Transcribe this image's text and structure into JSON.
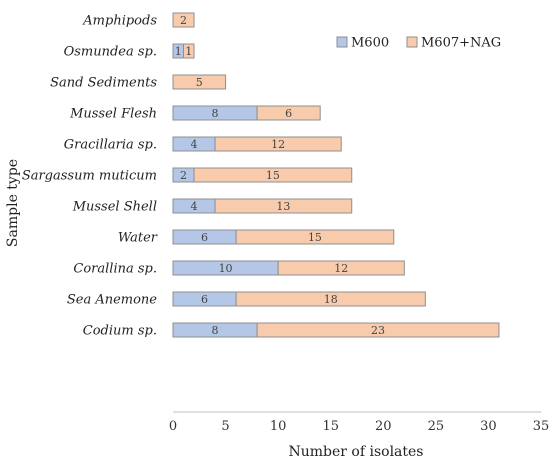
{
  "chart_data": {
    "type": "bar",
    "orientation": "horizontal",
    "stacked": true,
    "categories": [
      "Amphipods",
      "Osmundea sp.",
      "Sand Sediments",
      "Mussel Flesh",
      "Gracillaria sp.",
      "Sargassum muticum",
      "Mussel Shell",
      "Water",
      "Corallina sp.",
      "Sea Anemone",
      "Codium sp."
    ],
    "series": [
      {
        "name": "M600",
        "color": "#b4c7e7",
        "values": [
          0,
          1,
          0,
          8,
          4,
          2,
          4,
          6,
          10,
          6,
          8
        ],
        "labels": [
          "",
          "1",
          "",
          "8",
          "4",
          "2",
          "4",
          "6",
          "10",
          "6",
          "8"
        ]
      },
      {
        "name": "M607+NAG",
        "color": "#f8cbad",
        "values": [
          2,
          1,
          5,
          6,
          12,
          15,
          13,
          15,
          12,
          18,
          23
        ],
        "labels": [
          "2",
          "1",
          "5",
          "6",
          "12",
          "15",
          "13",
          "15",
          "12",
          "18",
          "23"
        ]
      }
    ],
    "xlabel": "Number of isolates",
    "ylabel": "Sample type",
    "xlim": [
      0,
      35
    ],
    "xticks": [
      "0",
      "5",
      "10",
      "15",
      "20",
      "25",
      "30",
      "35"
    ],
    "grid": false,
    "legend_position": "top-right",
    "border_color": "#8f8f8f"
  }
}
